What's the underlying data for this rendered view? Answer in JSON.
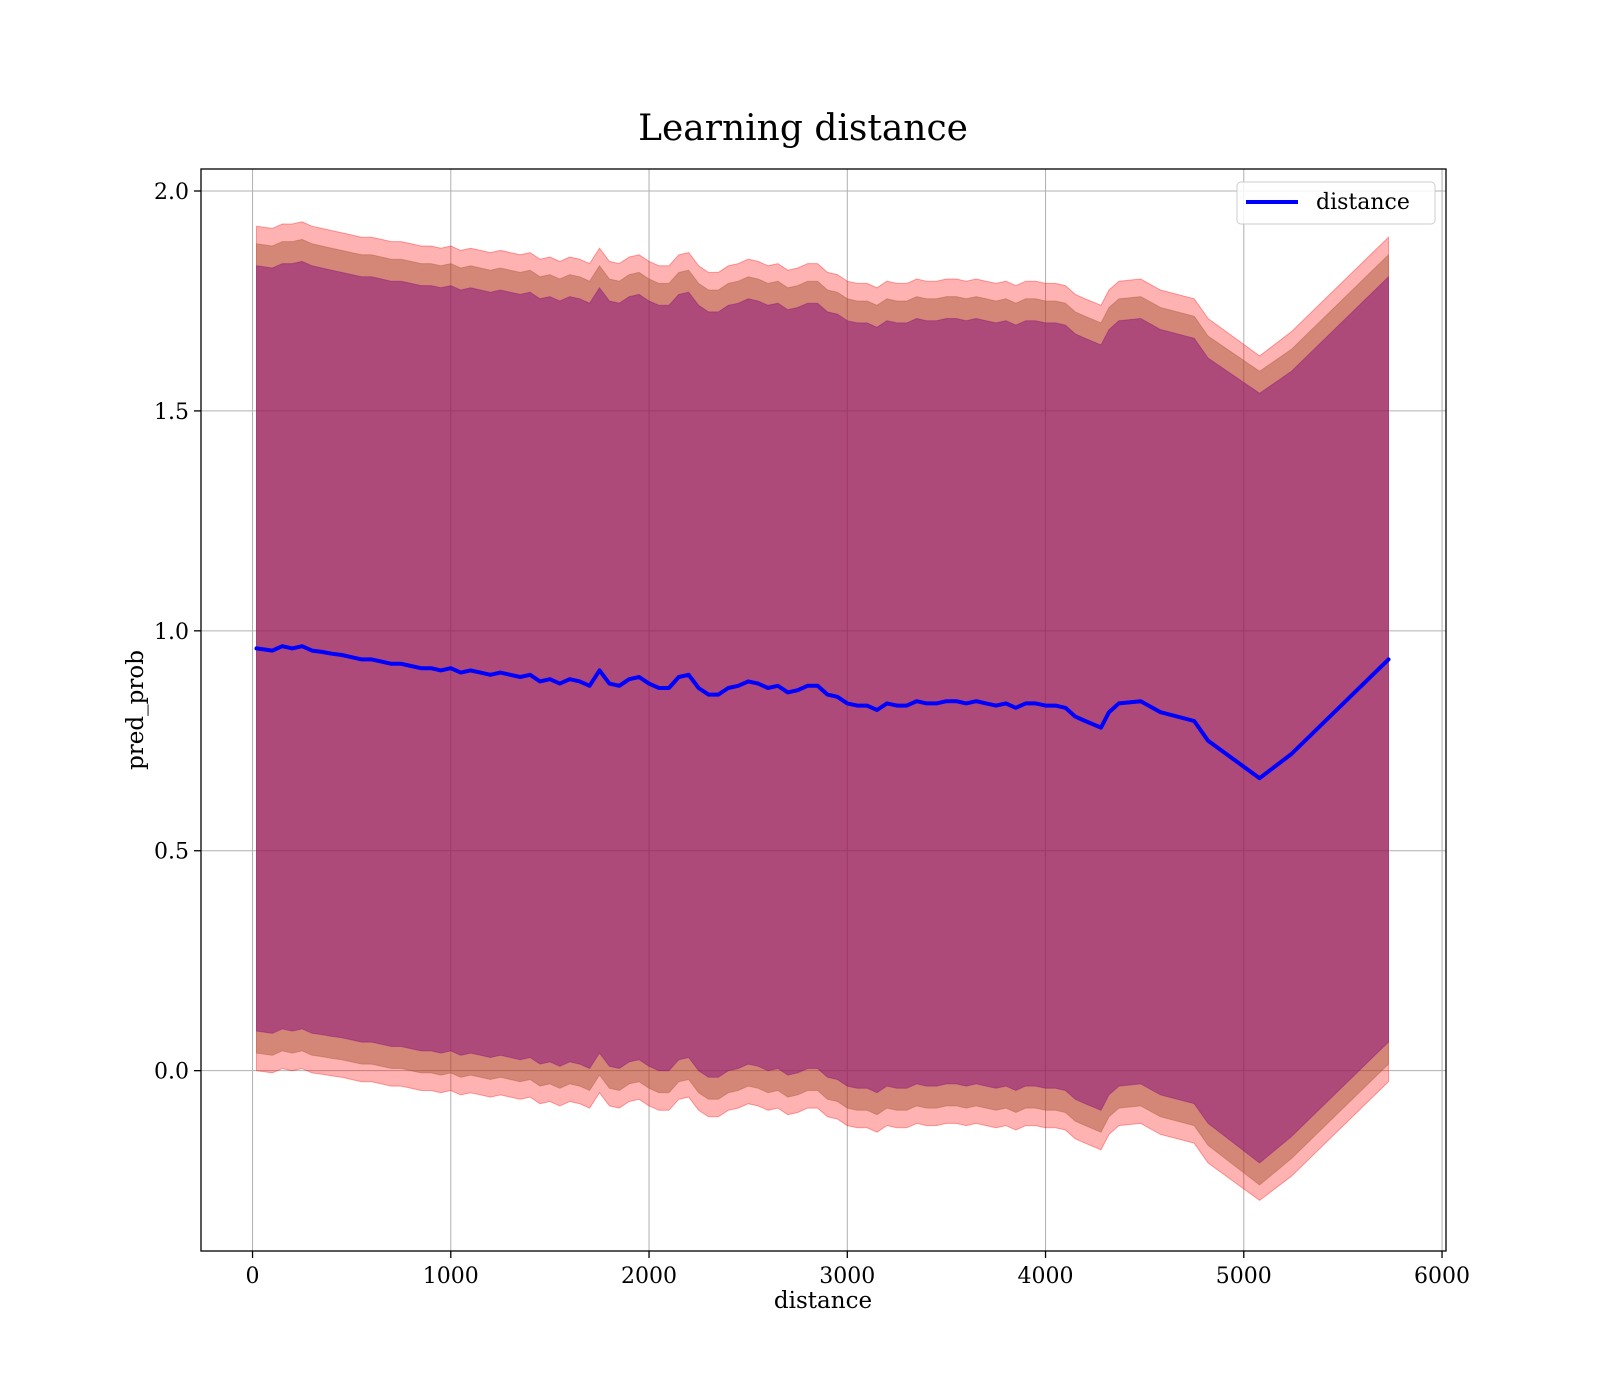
{
  "chart_data": {
    "type": "line",
    "title": "Learning distance",
    "xlabel": "distance",
    "ylabel": "pred_prob",
    "xlim": [
      -260,
      6020
    ],
    "ylim": [
      -0.41,
      2.05
    ],
    "xticks": [
      0,
      1000,
      2000,
      3000,
      4000,
      5000,
      6000
    ],
    "xtick_labels": [
      "0",
      "1000",
      "2000",
      "3000",
      "4000",
      "5000",
      "6000"
    ],
    "yticks": [
      0.0,
      0.5,
      1.0,
      1.5,
      2.0
    ],
    "ytick_labels": [
      "0.0",
      "0.5",
      "1.0",
      "1.5",
      "2.0"
    ],
    "grid": true,
    "legend_position": "top-right",
    "colors": {
      "line": "#0000ff",
      "band_outer": "#ff0000",
      "band_middle": "#a0522d",
      "band_inner": "#800080"
    },
    "series": [
      {
        "name": "distance",
        "x": [
          20,
          100,
          150,
          200,
          250,
          300,
          350,
          400,
          450,
          500,
          550,
          600,
          650,
          700,
          750,
          800,
          850,
          900,
          950,
          1000,
          1050,
          1100,
          1150,
          1200,
          1250,
          1300,
          1350,
          1400,
          1450,
          1500,
          1550,
          1600,
          1650,
          1700,
          1750,
          1800,
          1850,
          1900,
          1950,
          2000,
          2050,
          2100,
          2150,
          2200,
          2250,
          2300,
          2350,
          2400,
          2450,
          2500,
          2550,
          2600,
          2650,
          2700,
          2750,
          2800,
          2850,
          2900,
          2950,
          3000,
          3050,
          3100,
          3150,
          3200,
          3250,
          3300,
          3350,
          3400,
          3450,
          3500,
          3550,
          3600,
          3650,
          3700,
          3750,
          3800,
          3850,
          3900,
          3950,
          4000,
          4050,
          4100,
          4150,
          4200,
          4280,
          4320,
          4370,
          4480,
          4580,
          4750,
          4820,
          5080,
          5240,
          5730
        ],
        "y": [
          0.96,
          0.955,
          0.965,
          0.96,
          0.965,
          0.955,
          0.952,
          0.948,
          0.945,
          0.94,
          0.935,
          0.935,
          0.93,
          0.925,
          0.925,
          0.92,
          0.915,
          0.915,
          0.91,
          0.915,
          0.905,
          0.91,
          0.905,
          0.9,
          0.905,
          0.9,
          0.895,
          0.9,
          0.885,
          0.89,
          0.88,
          0.89,
          0.885,
          0.875,
          0.91,
          0.88,
          0.875,
          0.89,
          0.895,
          0.88,
          0.87,
          0.87,
          0.895,
          0.9,
          0.87,
          0.855,
          0.855,
          0.87,
          0.875,
          0.885,
          0.88,
          0.87,
          0.875,
          0.86,
          0.865,
          0.875,
          0.875,
          0.855,
          0.85,
          0.835,
          0.83,
          0.83,
          0.82,
          0.835,
          0.83,
          0.83,
          0.84,
          0.835,
          0.835,
          0.84,
          0.84,
          0.835,
          0.84,
          0.835,
          0.83,
          0.835,
          0.825,
          0.835,
          0.835,
          0.83,
          0.83,
          0.825,
          0.805,
          0.795,
          0.78,
          0.815,
          0.835,
          0.84,
          0.815,
          0.795,
          0.75,
          0.665,
          0.72,
          0.935
        ]
      }
    ],
    "bands": [
      {
        "upper": [
          1.92,
          1.915,
          1.925,
          1.925,
          1.93,
          1.92,
          1.915,
          1.91,
          1.905,
          1.9,
          1.895,
          1.895,
          1.89,
          1.885,
          1.885,
          1.88,
          1.875,
          1.875,
          1.87,
          1.875,
          1.865,
          1.87,
          1.865,
          1.86,
          1.865,
          1.86,
          1.855,
          1.86,
          1.845,
          1.85,
          1.84,
          1.85,
          1.845,
          1.835,
          1.87,
          1.84,
          1.835,
          1.85,
          1.855,
          1.84,
          1.83,
          1.83,
          1.855,
          1.86,
          1.83,
          1.815,
          1.815,
          1.83,
          1.835,
          1.845,
          1.84,
          1.83,
          1.835,
          1.82,
          1.825,
          1.835,
          1.835,
          1.815,
          1.81,
          1.795,
          1.79,
          1.79,
          1.78,
          1.795,
          1.79,
          1.79,
          1.8,
          1.795,
          1.795,
          1.8,
          1.8,
          1.795,
          1.8,
          1.795,
          1.79,
          1.795,
          1.785,
          1.795,
          1.795,
          1.79,
          1.79,
          1.785,
          1.765,
          1.755,
          1.74,
          1.775,
          1.795,
          1.8,
          1.775,
          1.755,
          1.71,
          1.625,
          1.68,
          1.895
        ],
        "lower": [
          0.0,
          -0.005,
          0.005,
          0.0,
          0.005,
          -0.005,
          -0.008,
          -0.012,
          -0.015,
          -0.02,
          -0.025,
          -0.025,
          -0.03,
          -0.035,
          -0.035,
          -0.04,
          -0.045,
          -0.045,
          -0.05,
          -0.045,
          -0.055,
          -0.05,
          -0.055,
          -0.06,
          -0.055,
          -0.06,
          -0.065,
          -0.06,
          -0.075,
          -0.07,
          -0.08,
          -0.07,
          -0.075,
          -0.085,
          -0.05,
          -0.08,
          -0.085,
          -0.07,
          -0.065,
          -0.08,
          -0.09,
          -0.09,
          -0.065,
          -0.06,
          -0.09,
          -0.105,
          -0.105,
          -0.09,
          -0.085,
          -0.075,
          -0.08,
          -0.09,
          -0.085,
          -0.1,
          -0.095,
          -0.085,
          -0.085,
          -0.105,
          -0.11,
          -0.125,
          -0.13,
          -0.13,
          -0.14,
          -0.125,
          -0.13,
          -0.13,
          -0.12,
          -0.125,
          -0.125,
          -0.12,
          -0.12,
          -0.125,
          -0.12,
          -0.125,
          -0.13,
          -0.125,
          -0.135,
          -0.125,
          -0.125,
          -0.13,
          -0.13,
          -0.135,
          -0.155,
          -0.165,
          -0.18,
          -0.145,
          -0.125,
          -0.12,
          -0.145,
          -0.165,
          -0.21,
          -0.295,
          -0.24,
          -0.025
        ]
      },
      {
        "upper": [
          1.88,
          1.875,
          1.885,
          1.885,
          1.89,
          1.88,
          1.875,
          1.87,
          1.865,
          1.86,
          1.855,
          1.855,
          1.85,
          1.845,
          1.845,
          1.84,
          1.835,
          1.835,
          1.83,
          1.835,
          1.825,
          1.83,
          1.825,
          1.82,
          1.825,
          1.82,
          1.815,
          1.82,
          1.805,
          1.81,
          1.8,
          1.81,
          1.805,
          1.795,
          1.83,
          1.8,
          1.795,
          1.81,
          1.815,
          1.8,
          1.79,
          1.79,
          1.815,
          1.82,
          1.79,
          1.775,
          1.775,
          1.79,
          1.795,
          1.805,
          1.8,
          1.79,
          1.795,
          1.78,
          1.785,
          1.795,
          1.795,
          1.775,
          1.77,
          1.755,
          1.75,
          1.75,
          1.74,
          1.755,
          1.75,
          1.75,
          1.76,
          1.755,
          1.755,
          1.76,
          1.76,
          1.755,
          1.76,
          1.755,
          1.75,
          1.755,
          1.745,
          1.755,
          1.755,
          1.75,
          1.75,
          1.745,
          1.725,
          1.715,
          1.7,
          1.735,
          1.755,
          1.76,
          1.735,
          1.715,
          1.67,
          1.59,
          1.64,
          1.855
        ],
        "lower": [
          0.04,
          0.035,
          0.045,
          0.04,
          0.045,
          0.035,
          0.032,
          0.028,
          0.025,
          0.02,
          0.015,
          0.015,
          0.01,
          0.005,
          0.005,
          0.0,
          -0.005,
          -0.005,
          -0.01,
          -0.005,
          -0.015,
          -0.01,
          -0.015,
          -0.02,
          -0.015,
          -0.02,
          -0.025,
          -0.02,
          -0.035,
          -0.03,
          -0.04,
          -0.03,
          -0.035,
          -0.045,
          -0.01,
          -0.04,
          -0.045,
          -0.03,
          -0.025,
          -0.04,
          -0.05,
          -0.05,
          -0.025,
          -0.02,
          -0.05,
          -0.065,
          -0.065,
          -0.05,
          -0.045,
          -0.035,
          -0.04,
          -0.05,
          -0.045,
          -0.06,
          -0.055,
          -0.045,
          -0.045,
          -0.065,
          -0.07,
          -0.085,
          -0.09,
          -0.09,
          -0.1,
          -0.085,
          -0.09,
          -0.09,
          -0.08,
          -0.085,
          -0.085,
          -0.08,
          -0.08,
          -0.085,
          -0.08,
          -0.085,
          -0.09,
          -0.085,
          -0.095,
          -0.085,
          -0.085,
          -0.09,
          -0.09,
          -0.095,
          -0.115,
          -0.125,
          -0.14,
          -0.105,
          -0.085,
          -0.08,
          -0.105,
          -0.125,
          -0.17,
          -0.26,
          -0.2,
          0.015
        ]
      },
      {
        "upper": [
          1.83,
          1.825,
          1.835,
          1.835,
          1.84,
          1.83,
          1.825,
          1.82,
          1.815,
          1.81,
          1.805,
          1.805,
          1.8,
          1.795,
          1.795,
          1.79,
          1.785,
          1.785,
          1.78,
          1.785,
          1.775,
          1.78,
          1.775,
          1.77,
          1.775,
          1.77,
          1.765,
          1.77,
          1.755,
          1.76,
          1.75,
          1.76,
          1.755,
          1.745,
          1.78,
          1.75,
          1.745,
          1.76,
          1.765,
          1.75,
          1.74,
          1.74,
          1.765,
          1.77,
          1.74,
          1.725,
          1.725,
          1.74,
          1.745,
          1.755,
          1.75,
          1.74,
          1.745,
          1.73,
          1.735,
          1.745,
          1.745,
          1.725,
          1.72,
          1.705,
          1.7,
          1.7,
          1.69,
          1.705,
          1.7,
          1.7,
          1.71,
          1.705,
          1.705,
          1.71,
          1.71,
          1.705,
          1.71,
          1.705,
          1.7,
          1.705,
          1.695,
          1.705,
          1.705,
          1.7,
          1.7,
          1.695,
          1.675,
          1.665,
          1.65,
          1.685,
          1.705,
          1.71,
          1.685,
          1.665,
          1.62,
          1.54,
          1.59,
          1.805
        ],
        "lower": [
          0.09,
          0.085,
          0.095,
          0.09,
          0.095,
          0.085,
          0.082,
          0.078,
          0.075,
          0.07,
          0.065,
          0.065,
          0.06,
          0.055,
          0.055,
          0.05,
          0.045,
          0.045,
          0.04,
          0.045,
          0.035,
          0.04,
          0.035,
          0.03,
          0.035,
          0.03,
          0.025,
          0.03,
          0.015,
          0.02,
          0.01,
          0.02,
          0.015,
          0.005,
          0.04,
          0.01,
          0.005,
          0.02,
          0.025,
          0.01,
          0.0,
          0.0,
          0.025,
          0.03,
          0.0,
          -0.015,
          -0.015,
          0.0,
          0.005,
          0.015,
          0.01,
          0.0,
          0.005,
          -0.01,
          -0.005,
          0.005,
          0.005,
          -0.015,
          -0.02,
          -0.035,
          -0.04,
          -0.04,
          -0.05,
          -0.035,
          -0.04,
          -0.04,
          -0.03,
          -0.035,
          -0.035,
          -0.03,
          -0.03,
          -0.035,
          -0.03,
          -0.035,
          -0.04,
          -0.035,
          -0.045,
          -0.035,
          -0.035,
          -0.04,
          -0.04,
          -0.045,
          -0.065,
          -0.075,
          -0.09,
          -0.055,
          -0.035,
          -0.03,
          -0.055,
          -0.075,
          -0.12,
          -0.21,
          -0.15,
          0.065
        ]
      }
    ]
  }
}
